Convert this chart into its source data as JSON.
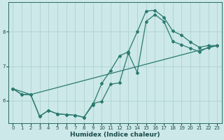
{
  "xlabel": "Humidex (Indice chaleur)",
  "bg_color": "#cce8e8",
  "grid_color": "#aacece",
  "line_color": "#2a7a70",
  "xlim": [
    -0.5,
    23.5
  ],
  "ylim": [
    5.35,
    8.85
  ],
  "xticks": [
    0,
    1,
    2,
    3,
    4,
    5,
    6,
    7,
    8,
    9,
    10,
    11,
    12,
    13,
    14,
    15,
    16,
    17,
    18,
    19,
    20,
    21,
    22,
    23
  ],
  "yticks": [
    6,
    7,
    8
  ],
  "line1_x": [
    0,
    1,
    2,
    3,
    4,
    5,
    6,
    7,
    8,
    9,
    10,
    11,
    12,
    13,
    14,
    15,
    16,
    17,
    18,
    19,
    20,
    21,
    22,
    23
  ],
  "line1_y": [
    6.35,
    6.18,
    6.18,
    5.55,
    5.72,
    5.62,
    5.6,
    5.58,
    5.52,
    5.88,
    6.5,
    6.88,
    7.3,
    7.42,
    8.0,
    8.6,
    8.62,
    8.42,
    8.02,
    7.9,
    7.7,
    7.55,
    7.6,
    7.6
  ],
  "line2_x": [
    0,
    1,
    2,
    3,
    4,
    5,
    6,
    7,
    8,
    9,
    10,
    11,
    12,
    13,
    14,
    15,
    16,
    17,
    18,
    19,
    20,
    21,
    22,
    23
  ],
  "line2_y": [
    6.35,
    6.18,
    6.18,
    5.55,
    5.72,
    5.62,
    5.6,
    5.58,
    5.52,
    5.92,
    5.98,
    6.48,
    6.52,
    7.38,
    6.82,
    8.3,
    8.5,
    8.3,
    7.72,
    7.62,
    7.52,
    7.42,
    7.55,
    7.6
  ],
  "line3_x": [
    0,
    2,
    23
  ],
  "line3_y": [
    6.35,
    6.18,
    7.6
  ]
}
